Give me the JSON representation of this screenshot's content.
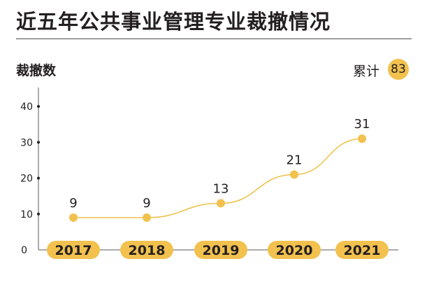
{
  "title": "近五年公共事业管理专业裁撤情况",
  "total": {
    "label": "累计",
    "value": "83"
  },
  "colors": {
    "accent": "#f2c14e",
    "line": "#eec24c",
    "text": "#231f20",
    "axis": "#5a5a5a"
  },
  "chart_data": {
    "type": "line",
    "title": "近五年公共事业管理专业裁撤情况",
    "ylabel": "裁撤数",
    "xlabel": "",
    "categories": [
      "2017",
      "2018",
      "2019",
      "2020",
      "2021"
    ],
    "values": [
      9,
      9,
      13,
      21,
      31
    ],
    "data_labels": [
      "9",
      "9",
      "13",
      "21",
      "31"
    ],
    "yticks": [
      0,
      10,
      20,
      30,
      40
    ],
    "ylim": [
      0,
      40
    ],
    "grid": false,
    "legend": "none"
  }
}
